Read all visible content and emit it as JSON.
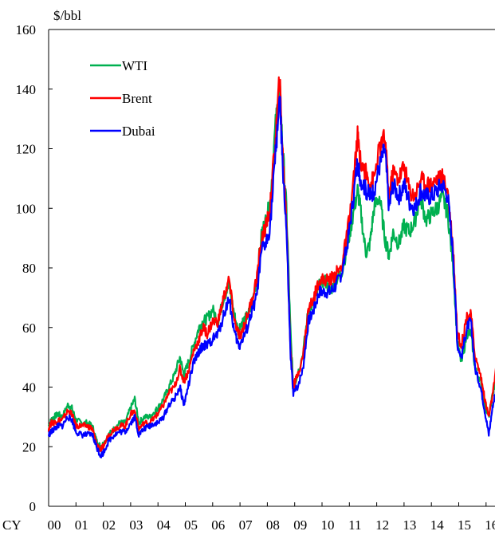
{
  "chart_data": {
    "type": "line",
    "title": "",
    "ylabel": "$/bbl",
    "xlabel": "",
    "x_prefix": "CY",
    "x_ticks": [
      "00",
      "01",
      "02",
      "03",
      "04",
      "05",
      "06",
      "07",
      "08",
      "09",
      "10",
      "11",
      "12",
      "13",
      "14",
      "15",
      "16"
    ],
    "ylim": [
      0,
      160
    ],
    "yticks": [
      0,
      20,
      40,
      60,
      80,
      100,
      120,
      140,
      160
    ],
    "xlim": [
      2000,
      2016.5
    ],
    "grid": false,
    "legend_position": "top-left",
    "series": [
      {
        "name": "WTI",
        "color": "#00b050",
        "x": [
          2000.0,
          2000.1,
          2000.2,
          2000.35,
          2000.5,
          2000.7,
          2000.85,
          2001.0,
          2001.2,
          2001.4,
          2001.6,
          2001.75,
          2001.9,
          2002.0,
          2002.2,
          2002.4,
          2002.6,
          2002.8,
          2003.0,
          2003.15,
          2003.3,
          2003.5,
          2003.7,
          2003.9,
          2004.0,
          2004.2,
          2004.4,
          2004.6,
          2004.8,
          2004.95,
          2005.1,
          2005.3,
          2005.5,
          2005.65,
          2005.8,
          2006.0,
          2006.2,
          2006.4,
          2006.6,
          2006.8,
          2006.95,
          2007.0,
          2007.2,
          2007.4,
          2007.6,
          2007.8,
          2007.95,
          2008.1,
          2008.3,
          2008.45,
          2008.55,
          2008.7,
          2008.85,
          2008.95,
          2009.1,
          2009.3,
          2009.5,
          2009.7,
          2009.9,
          2010.1,
          2010.3,
          2010.5,
          2010.7,
          2010.9,
          2011.1,
          2011.3,
          2011.4,
          2011.6,
          2011.75,
          2011.9,
          2012.1,
          2012.3,
          2012.45,
          2012.6,
          2012.8,
          2013.0,
          2013.2,
          2013.4,
          2013.6,
          2013.8,
          2014.0,
          2014.2,
          2014.4,
          2014.6,
          2014.8,
          2014.95,
          2015.1,
          2015.3,
          2015.45,
          2015.6,
          2015.8,
          2015.95,
          2016.1,
          2016.25,
          2016.4
        ],
        "y": [
          27,
          29,
          30,
          31,
          30,
          34,
          33,
          29,
          28,
          28,
          27,
          22,
          20,
          21,
          24,
          26,
          28,
          28,
          33,
          36,
          28,
          30,
          30,
          32,
          33,
          36,
          40,
          44,
          50,
          44,
          48,
          54,
          60,
          62,
          63,
          66,
          62,
          70,
          74,
          64,
          58,
          61,
          63,
          66,
          76,
          92,
          96,
          102,
          128,
          141,
          122,
          100,
          58,
          40,
          44,
          51,
          66,
          68,
          74,
          76,
          72,
          76,
          78,
          86,
          96,
          106,
          100,
          85,
          88,
          100,
          104,
          90,
          84,
          92,
          88,
          94,
          92,
          96,
          104,
          96,
          98,
          100,
          104,
          98,
          80,
          55,
          48,
          58,
          58,
          46,
          42,
          34,
          30,
          38,
          44
        ]
      },
      {
        "name": "Brent",
        "color": "#ff0000",
        "x": [
          2000.0,
          2000.1,
          2000.2,
          2000.35,
          2000.5,
          2000.7,
          2000.85,
          2001.0,
          2001.2,
          2001.4,
          2001.6,
          2001.75,
          2001.9,
          2002.0,
          2002.2,
          2002.4,
          2002.6,
          2002.8,
          2003.0,
          2003.15,
          2003.3,
          2003.5,
          2003.7,
          2003.9,
          2004.0,
          2004.2,
          2004.4,
          2004.6,
          2004.8,
          2004.95,
          2005.1,
          2005.3,
          2005.5,
          2005.65,
          2005.8,
          2006.0,
          2006.2,
          2006.4,
          2006.6,
          2006.8,
          2006.95,
          2007.0,
          2007.2,
          2007.4,
          2007.6,
          2007.8,
          2007.95,
          2008.1,
          2008.3,
          2008.45,
          2008.55,
          2008.7,
          2008.85,
          2008.95,
          2009.1,
          2009.3,
          2009.5,
          2009.7,
          2009.9,
          2010.1,
          2010.3,
          2010.5,
          2010.7,
          2010.9,
          2011.1,
          2011.3,
          2011.4,
          2011.6,
          2011.75,
          2011.9,
          2012.1,
          2012.3,
          2012.45,
          2012.6,
          2012.8,
          2013.0,
          2013.2,
          2013.4,
          2013.6,
          2013.8,
          2014.0,
          2014.2,
          2014.4,
          2014.6,
          2014.8,
          2014.95,
          2015.1,
          2015.3,
          2015.45,
          2015.6,
          2015.8,
          2015.95,
          2016.1,
          2016.25,
          2016.4
        ],
        "y": [
          26,
          28,
          28,
          29,
          29,
          32,
          31,
          27,
          27,
          27,
          26,
          21,
          19,
          20,
          24,
          26,
          27,
          27,
          31,
          32,
          26,
          28,
          28,
          30,
          31,
          34,
          38,
          40,
          46,
          42,
          45,
          52,
          56,
          60,
          58,
          62,
          62,
          70,
          76,
          62,
          58,
          57,
          62,
          68,
          76,
          90,
          94,
          100,
          124,
          144,
          120,
          96,
          52,
          40,
          44,
          50,
          66,
          70,
          76,
          76,
          76,
          78,
          80,
          90,
          104,
          124,
          116,
          112,
          108,
          110,
          120,
          124,
          104,
          112,
          110,
          114,
          106,
          104,
          110,
          108,
          108,
          110,
          110,
          106,
          86,
          58,
          54,
          64,
          64,
          50,
          44,
          36,
          30,
          38,
          48
        ]
      },
      {
        "name": "Dubai",
        "color": "#0000ff",
        "x": [
          2000.0,
          2000.1,
          2000.2,
          2000.35,
          2000.5,
          2000.7,
          2000.85,
          2001.0,
          2001.2,
          2001.4,
          2001.6,
          2001.75,
          2001.9,
          2002.0,
          2002.2,
          2002.4,
          2002.6,
          2002.8,
          2003.0,
          2003.15,
          2003.3,
          2003.5,
          2003.7,
          2003.9,
          2004.0,
          2004.2,
          2004.4,
          2004.6,
          2004.8,
          2004.95,
          2005.1,
          2005.3,
          2005.5,
          2005.65,
          2005.8,
          2006.0,
          2006.2,
          2006.4,
          2006.6,
          2006.8,
          2006.95,
          2007.0,
          2007.2,
          2007.4,
          2007.6,
          2007.8,
          2007.95,
          2008.1,
          2008.3,
          2008.45,
          2008.55,
          2008.7,
          2008.85,
          2008.95,
          2009.1,
          2009.3,
          2009.5,
          2009.7,
          2009.9,
          2010.1,
          2010.3,
          2010.5,
          2010.7,
          2010.9,
          2011.1,
          2011.3,
          2011.4,
          2011.6,
          2011.75,
          2011.9,
          2012.1,
          2012.3,
          2012.45,
          2012.6,
          2012.8,
          2013.0,
          2013.2,
          2013.4,
          2013.6,
          2013.8,
          2014.0,
          2014.2,
          2014.4,
          2014.6,
          2014.8,
          2014.95,
          2015.1,
          2015.3,
          2015.45,
          2015.6,
          2015.8,
          2015.95,
          2016.1,
          2016.25,
          2016.4
        ],
        "y": [
          24,
          25,
          26,
          27,
          27,
          30,
          29,
          25,
          24,
          24,
          24,
          20,
          17,
          18,
          22,
          24,
          25,
          25,
          28,
          30,
          24,
          26,
          27,
          28,
          28,
          30,
          34,
          36,
          40,
          34,
          40,
          48,
          52,
          54,
          54,
          56,
          58,
          64,
          70,
          58,
          54,
          54,
          58,
          64,
          70,
          86,
          88,
          94,
          118,
          138,
          116,
          92,
          50,
          38,
          40,
          46,
          62,
          66,
          72,
          72,
          72,
          74,
          78,
          86,
          100,
          116,
          110,
          106,
          104,
          106,
          114,
          120,
          100,
          108,
          104,
          108,
          102,
          100,
          106,
          104,
          104,
          106,
          108,
          104,
          84,
          54,
          50,
          60,
          62,
          46,
          40,
          32,
          24,
          34,
          40
        ]
      }
    ]
  }
}
